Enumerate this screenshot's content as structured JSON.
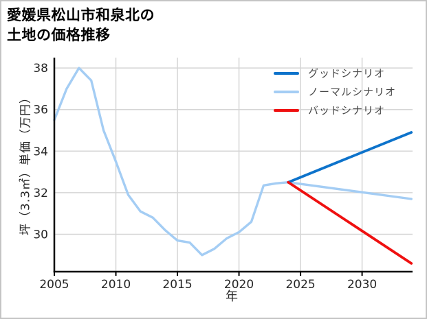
{
  "title": {
    "lines": [
      "愛媛県松山市和泉北の",
      "土地の価格推移"
    ]
  },
  "axes": {
    "xlabel": "年",
    "ylabel": "坪（3.3㎡）単価（万円）"
  },
  "legend": {
    "items": [
      {
        "label": "グッドシナリオ",
        "color": "#0d73cb"
      },
      {
        "label": "ノーマルシナリオ",
        "color": "#a4cdf4"
      },
      {
        "label": "バッドシナリオ",
        "color": "#ef1010"
      }
    ]
  },
  "colors": {
    "good": "#0d73cb",
    "normal": "#a4cdf4",
    "bad": "#ef1010",
    "grid": "#d5d5d5",
    "spine": "#000000",
    "tick_text": "#262626"
  },
  "chart_data": {
    "type": "line",
    "title": "愛媛県松山市和泉北の土地の価格推移",
    "xlabel": "年",
    "ylabel": "坪（3.3㎡）単価（万円）",
    "xlim": [
      2005,
      2034.1
    ],
    "ylim": [
      28.2,
      38.5
    ],
    "x_ticks": [
      2005,
      2010,
      2015,
      2020,
      2025,
      2030
    ],
    "y_ticks": [
      30,
      32,
      34,
      36,
      38
    ],
    "grid": true,
    "legend_position": "upper right",
    "series": [
      {
        "name": "ノーマルシナリオ",
        "color": "#a4cdf4",
        "width": 3.4,
        "points": [
          [
            2005,
            35.5
          ],
          [
            2006,
            37.0
          ],
          [
            2007,
            38.0
          ],
          [
            2008,
            37.4
          ],
          [
            2009,
            35.0
          ],
          [
            2010,
            33.5
          ],
          [
            2011,
            31.9
          ],
          [
            2012,
            31.1
          ],
          [
            2013,
            30.8
          ],
          [
            2014,
            30.2
          ],
          [
            2015,
            29.7
          ],
          [
            2016,
            29.6
          ],
          [
            2017,
            29.0
          ],
          [
            2018,
            29.3
          ],
          [
            2019,
            29.8
          ],
          [
            2020,
            30.1
          ],
          [
            2021,
            30.6
          ],
          [
            2022,
            32.35
          ],
          [
            2023,
            32.45
          ],
          [
            2024,
            32.5
          ],
          [
            2034,
            31.7
          ]
        ]
      },
      {
        "name": "グッドシナリオ",
        "color": "#0d73cb",
        "width": 3.8,
        "points": [
          [
            2024,
            32.5
          ],
          [
            2034,
            34.9
          ]
        ]
      },
      {
        "name": "バッドシナリオ",
        "color": "#ef1010",
        "width": 3.8,
        "points": [
          [
            2024,
            32.5
          ],
          [
            2034,
            28.6
          ]
        ]
      }
    ]
  }
}
